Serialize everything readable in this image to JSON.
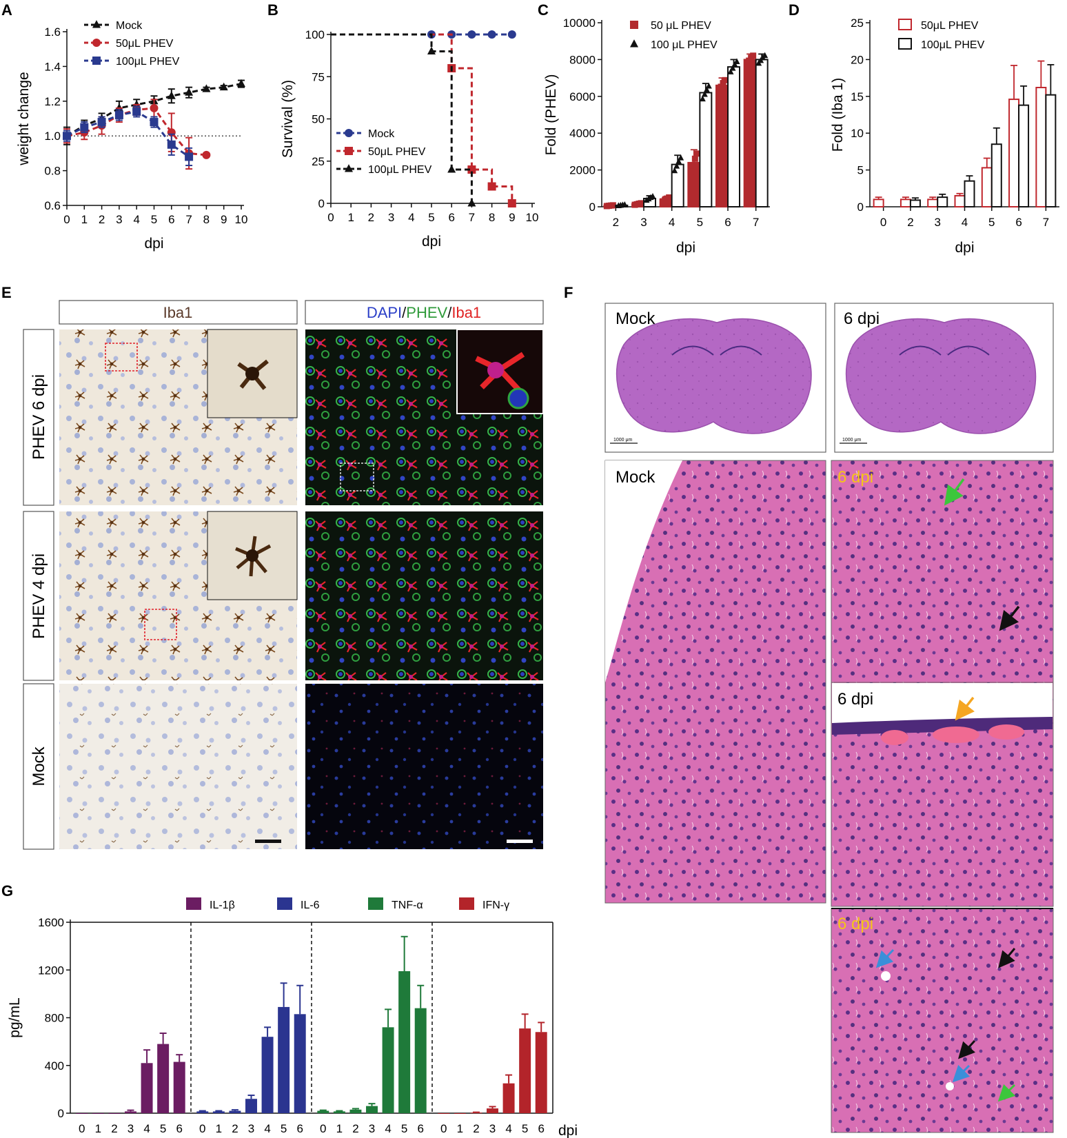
{
  "panels": {
    "A": {
      "label": "A",
      "chart_data": {
        "type": "line",
        "xlabel": "dpi",
        "ylabel": "weight change",
        "xlim": [
          0,
          10
        ],
        "ylim": [
          0.6,
          1.6
        ],
        "xticks": [
          0,
          1,
          2,
          3,
          4,
          5,
          6,
          7,
          8,
          9,
          10
        ],
        "yticks": [
          "0.6",
          "0.8",
          "1.0",
          "1.2",
          "1.4",
          "1.6"
        ],
        "reference_line": 1.0,
        "legend_position": "top-left",
        "series": [
          {
            "name": "Mock",
            "color": "#111111",
            "marker": "triangle",
            "x": [
              0,
              1,
              2,
              3,
              4,
              5,
              6,
              7,
              8,
              9,
              10
            ],
            "y": [
              1.0,
              1.06,
              1.1,
              1.16,
              1.18,
              1.2,
              1.23,
              1.25,
              1.27,
              1.28,
              1.3
            ],
            "err": [
              0.05,
              0.03,
              0.03,
              0.04,
              0.03,
              0.03,
              0.04,
              0.03,
              0.01,
              0.01,
              0.02
            ]
          },
          {
            "name": "50μL PHEV",
            "color": "#c0272d",
            "marker": "circle",
            "x": [
              0,
              1,
              2,
              3,
              4,
              5,
              6,
              7,
              8
            ],
            "y": [
              1.0,
              1.02,
              1.06,
              1.12,
              1.15,
              1.16,
              1.02,
              0.9,
              0.89
            ],
            "err": [
              0.04,
              0.04,
              0.05,
              0.04,
              0.03,
              0.05,
              0.11,
              0.09,
              0.0
            ]
          },
          {
            "name": "100μL PHEV",
            "color": "#2a3a8f",
            "marker": "square",
            "x": [
              0,
              1,
              2,
              3,
              4,
              5,
              6,
              7
            ],
            "y": [
              1.0,
              1.05,
              1.08,
              1.12,
              1.14,
              1.08,
              0.95,
              0.88
            ],
            "err": [
              0.03,
              0.03,
              0.03,
              0.03,
              0.03,
              0.03,
              0.06,
              0.05
            ]
          }
        ]
      }
    },
    "B": {
      "label": "B",
      "chart_data": {
        "type": "line",
        "step": true,
        "xlabel": "dpi",
        "ylabel": "Survival (%)",
        "xlim": [
          0,
          10
        ],
        "ylim": [
          0,
          100
        ],
        "xticks": [
          0,
          1,
          2,
          3,
          4,
          5,
          6,
          7,
          8,
          9,
          10
        ],
        "yticks": [
          "0",
          "25",
          "50",
          "75",
          "100"
        ],
        "legend_position": "bottom-left",
        "series": [
          {
            "name": "Mock",
            "color": "#2a3a8f",
            "marker": "circle",
            "x": [
              0,
              5,
              6,
              7,
              8,
              9
            ],
            "y": [
              100,
              100,
              100,
              100,
              100,
              100
            ]
          },
          {
            "name": "50μL PHEV",
            "color": "#c0272d",
            "marker": "square",
            "x": [
              0,
              6,
              7,
              8,
              9
            ],
            "y": [
              100,
              80,
              20,
              10,
              0
            ]
          },
          {
            "name": "100μL PHEV",
            "color": "#111111",
            "marker": "triangle",
            "x": [
              0,
              5,
              6,
              7
            ],
            "y": [
              100,
              90,
              20,
              0
            ]
          }
        ]
      }
    },
    "C": {
      "label": "C",
      "chart_data": {
        "type": "bar",
        "xlabel": "dpi",
        "ylabel": "Fold (PHEV)",
        "categories": [
          "2",
          "3",
          "4",
          "5",
          "6",
          "7"
        ],
        "ylim": [
          0,
          10000
        ],
        "yticks": [
          "0",
          "2000",
          "4000",
          "6000",
          "8000",
          "10000"
        ],
        "legend_position": "top-left",
        "series": [
          {
            "name": "50 μL PHEV",
            "color": "#b22a2e",
            "fill": "#b22a2e",
            "values": [
              60,
              150,
              400,
              2400,
              6600,
              8000
            ],
            "err": [
              30,
              60,
              150,
              700,
              400,
              300
            ]
          },
          {
            "name": "100 μL PHEV",
            "color": "#111111",
            "fill": "#ffffff",
            "values": [
              80,
              450,
              2300,
              6200,
              7600,
              8000
            ],
            "err": [
              40,
              150,
              500,
              500,
              400,
              300
            ]
          }
        ]
      }
    },
    "D": {
      "label": "D",
      "chart_data": {
        "type": "bar",
        "xlabel": "dpi",
        "ylabel": "Fold (Iba 1)",
        "categories": [
          "0",
          "2",
          "3",
          "4",
          "5",
          "6",
          "7"
        ],
        "ylim": [
          0,
          25
        ],
        "yticks": [
          "0",
          "5",
          "10",
          "15",
          "20",
          "25"
        ],
        "legend_position": "top-left",
        "series": [
          {
            "name": "50μL PHEV",
            "color": "#c0272d",
            "fill": "#ffffff",
            "values": [
              1.0,
              1.0,
              1.0,
              1.5,
              5.3,
              14.6,
              16.2
            ],
            "err": [
              0.3,
              0.3,
              0.3,
              0.3,
              1.3,
              4.6,
              3.6
            ]
          },
          {
            "name": "100μL PHEV",
            "color": "#111111",
            "fill": "#ffffff",
            "values": [
              null,
              0.9,
              1.3,
              3.5,
              8.5,
              13.8,
              15.2
            ],
            "err": [
              0,
              0.3,
              0.4,
              0.7,
              2.2,
              2.6,
              4.1
            ]
          }
        ]
      }
    },
    "E": {
      "label": "E",
      "col1_title": "Iba1",
      "col2_title_parts": [
        {
          "text": "DAPI",
          "color": "#2b3fc7"
        },
        {
          "text": "/",
          "color": "#111111"
        },
        {
          "text": "PHEV",
          "color": "#2f9a3a"
        },
        {
          "text": "/",
          "color": "#111111"
        },
        {
          "text": "Iba1",
          "color": "#e02222"
        }
      ],
      "rows": [
        "PHEV 6 dpi",
        "PHEV 4 dpi",
        "Mock"
      ]
    },
    "F": {
      "label": "F",
      "top_left": "Mock",
      "top_right": "6 dpi",
      "scale_text": "1000 μm",
      "mid_left": "Mock",
      "r1": "6 dpi",
      "r2": "6 dpi",
      "r3": "6 dpi",
      "hl_color": "#f5c518",
      "arrow_colors": {
        "green": "#3cc63c",
        "black": "#111111",
        "orange": "#f5a623",
        "blue": "#3a8fd9"
      }
    },
    "G": {
      "label": "G",
      "chart_data": {
        "type": "bar",
        "ylabel": "pg/mL",
        "xlabel": "dpi",
        "ylim": [
          0,
          1600
        ],
        "yticks": [
          "0",
          "400",
          "800",
          "1200",
          "1600"
        ],
        "categories": [
          "0",
          "1",
          "2",
          "3",
          "4",
          "5",
          "6"
        ],
        "legend_position": "top",
        "series": [
          {
            "name": "IL-1β",
            "color": "#6b1d62",
            "values": [
              0,
              0,
              0,
              15,
              420,
              580,
              430
            ],
            "err": [
              0,
              0,
              0,
              10,
              110,
              90,
              60
            ]
          },
          {
            "name": "IL-6",
            "color": "#2b3590",
            "values": [
              15,
              15,
              20,
              120,
              640,
              890,
              830
            ],
            "err": [
              5,
              5,
              8,
              30,
              80,
              200,
              240
            ]
          },
          {
            "name": "TNF-α",
            "color": "#1f7a3a",
            "values": [
              20,
              15,
              30,
              60,
              720,
              1190,
              880
            ],
            "err": [
              5,
              5,
              8,
              20,
              150,
              290,
              190
            ]
          },
          {
            "name": "IFN-γ",
            "color": "#b3242a",
            "values": [
              0,
              0,
              5,
              40,
              250,
              710,
              680
            ],
            "err": [
              0,
              0,
              3,
              15,
              70,
              120,
              80
            ]
          }
        ]
      }
    }
  }
}
